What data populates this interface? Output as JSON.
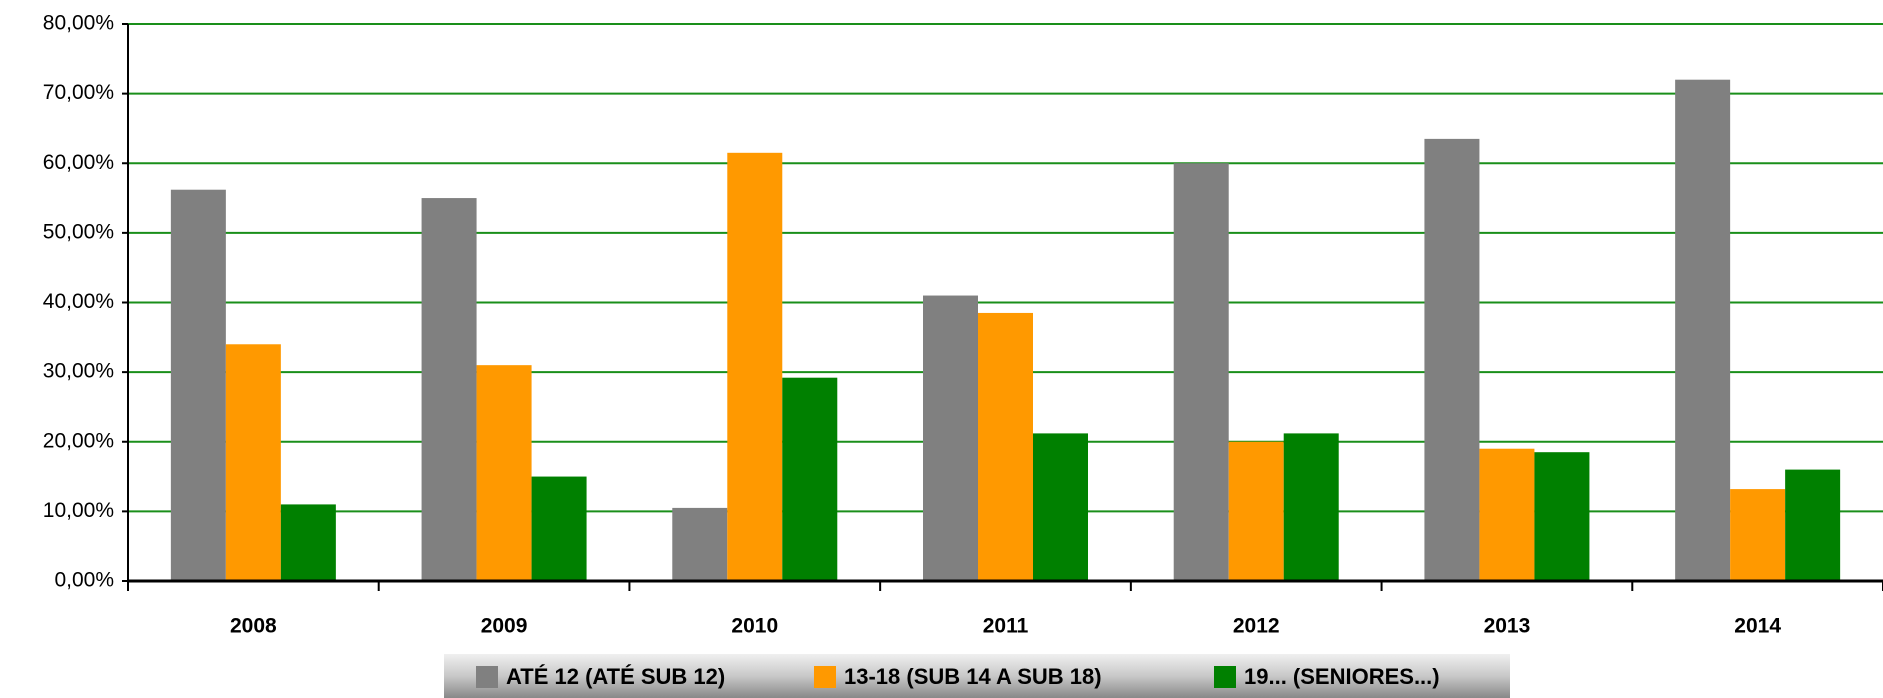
{
  "chart_data": {
    "type": "bar",
    "categories": [
      "2008",
      "2009",
      "2010",
      "2011",
      "2012",
      "2013",
      "2014"
    ],
    "series": [
      {
        "name": "ATÉ 12 (ATÉ SUB 12)",
        "color": "#808080",
        "values": [
          56.2,
          55,
          10.5,
          41,
          60,
          63.5,
          72
        ]
      },
      {
        "name": "13-18 (SUB 14 A SUB 18)",
        "color": "#ff9900",
        "values": [
          34,
          31,
          61.5,
          38.5,
          20,
          19,
          13.2
        ]
      },
      {
        "name": "19... (SENIORES...)",
        "color": "#008000",
        "values": [
          11,
          15,
          29.2,
          21.2,
          21.2,
          18.5,
          16
        ]
      }
    ],
    "ylim": [
      0,
      80
    ],
    "yticks": [
      {
        "value": 0,
        "label": "0,00%"
      },
      {
        "value": 10,
        "label": "10,00%"
      },
      {
        "value": 20,
        "label": "20,00%"
      },
      {
        "value": 30,
        "label": "30,00%"
      },
      {
        "value": 40,
        "label": "40,00%"
      },
      {
        "value": 50,
        "label": "50,00%"
      },
      {
        "value": 60,
        "label": "60,00%"
      },
      {
        "value": 70,
        "label": "70,00%"
      },
      {
        "value": 80,
        "label": "80,00%"
      }
    ],
    "grid": true,
    "grid_color": "#1a8f1a",
    "legend": "bottom"
  }
}
